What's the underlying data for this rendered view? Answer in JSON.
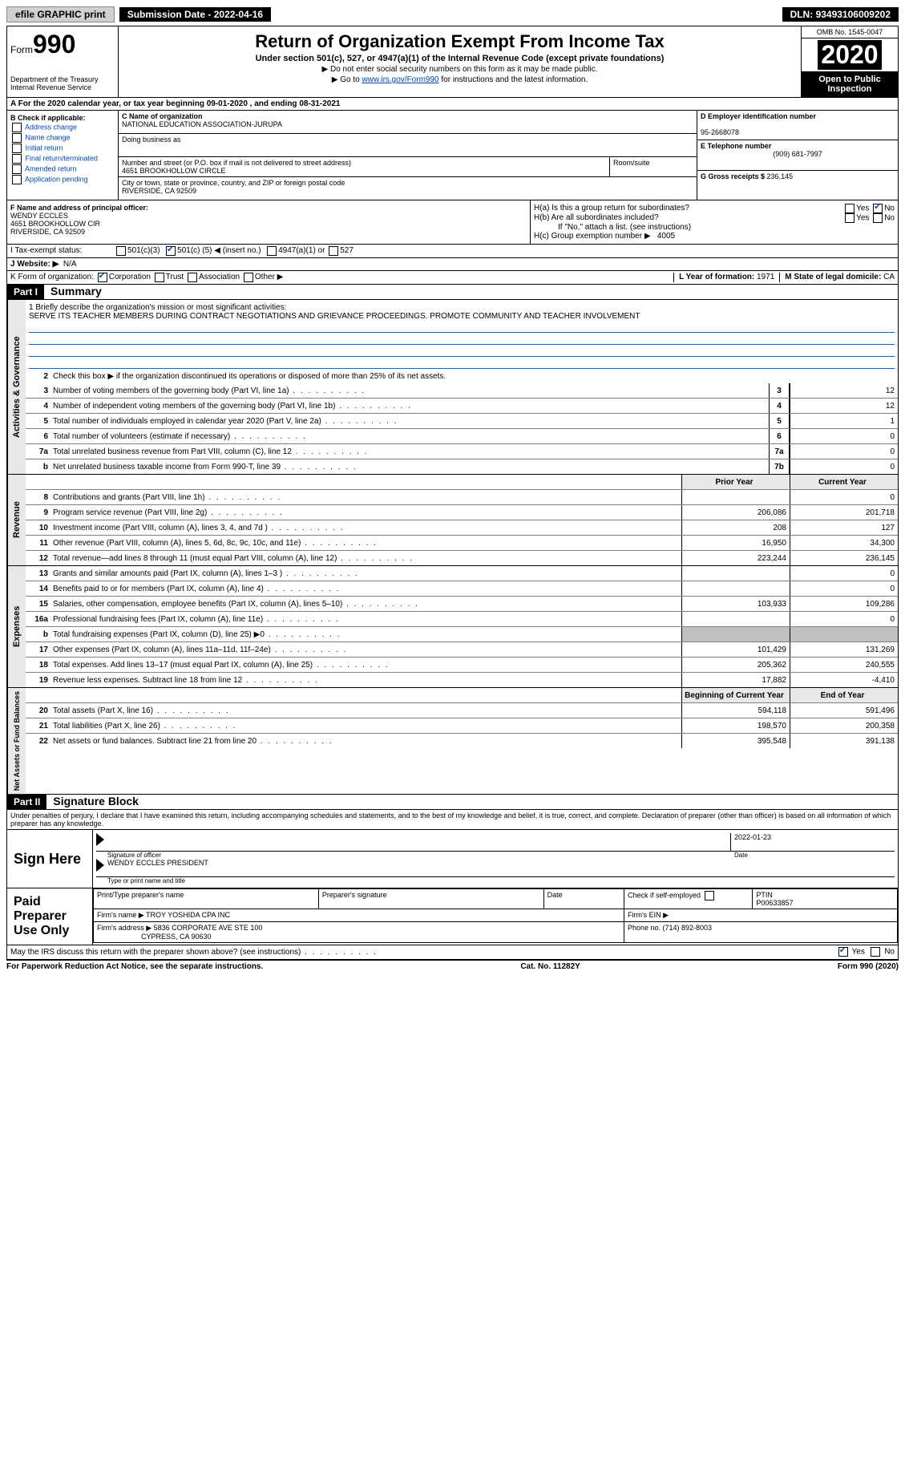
{
  "top": {
    "efile_label": "efile GRAPHIC print",
    "submission_prefix": "Submission Date - ",
    "submission_date": "2022-04-16",
    "dln_prefix": "DLN: ",
    "dln": "93493106009202"
  },
  "header": {
    "form_word": "Form",
    "form_num": "990",
    "dept": "Department of the Treasury",
    "irs": "Internal Revenue Service",
    "title": "Return of Organization Exempt From Income Tax",
    "subtitle": "Under section 501(c), 527, or 4947(a)(1) of the Internal Revenue Code (except private foundations)",
    "note1": "▶ Do not enter social security numbers on this form as it may be made public.",
    "note2_pre": "▶ Go to ",
    "note2_link": "www.irs.gov/Form990",
    "note2_post": " for instructions and the latest information.",
    "omb": "OMB No. 1545-0047",
    "year": "2020",
    "inspection1": "Open to Public",
    "inspection2": "Inspection"
  },
  "section_a": "A For the 2020 calendar year, or tax year beginning 09-01-2020   , and ending 08-31-2021",
  "box_b": {
    "header": "B Check if applicable:",
    "items": [
      "Address change",
      "Name change",
      "Initial return",
      "Final return/terminated",
      "Amended return",
      "Application pending"
    ]
  },
  "box_c": {
    "label": "C Name of organization",
    "org_name": "NATIONAL EDUCATION ASSOCIATION-JURUPA",
    "dba_label": "Doing business as",
    "addr_label": "Number and street (or P.O. box if mail is not delivered to street address)",
    "room_label": "Room/suite",
    "street": "4651 BROOKHOLLOW CIRCLE",
    "city_label": "City or town, state or province, country, and ZIP or foreign postal code",
    "city": "RIVERSIDE, CA  92509"
  },
  "box_d": {
    "label": "D Employer identification number",
    "value": "95-2668078"
  },
  "box_e": {
    "label": "E Telephone number",
    "value": "(909) 681-7997"
  },
  "box_g": {
    "label": "G Gross receipts $ ",
    "value": "236,145"
  },
  "box_f": {
    "label": "F Name and address of principal officer:",
    "name": "WENDY ECCLES",
    "addr1": "4651 BROOKHOLLOW CIR",
    "addr2": "RIVERSIDE, CA  92509"
  },
  "box_h": {
    "ha_label": "H(a)  Is this a group return for subordinates?",
    "hb_label": "H(b)  Are all subordinates included?",
    "hb_note": "If \"No,\" attach a list. (see instructions)",
    "hc_label": "H(c)  Group exemption number ▶",
    "hc_value": "4005",
    "yes": "Yes",
    "no": "No"
  },
  "row_i": {
    "label": "I   Tax-exempt status:",
    "opt1": "501(c)(3)",
    "opt2_pre": "501(c) ( ",
    "opt2_val": "5",
    "opt2_post": " ) ◀ (insert no.)",
    "opt3": "4947(a)(1) or",
    "opt4": "527"
  },
  "row_j": {
    "label": "J   Website: ▶",
    "value": "N/A"
  },
  "row_k": {
    "label": "K Form of organization:",
    "corp": "Corporation",
    "trust": "Trust",
    "assoc": "Association",
    "other": "Other ▶"
  },
  "row_l": {
    "label": "L Year of formation: ",
    "value": "1971"
  },
  "row_m": {
    "label": "M State of legal domicile: ",
    "value": "CA"
  },
  "part1": {
    "tag": "Part I",
    "title": "Summary",
    "line1_label": "1   Briefly describe the organization's mission or most significant activities:",
    "mission": "SERVE ITS TEACHER MEMBERS DURING CONTRACT NEGOTIATIONS AND GRIEVANCE PROCEEDINGS. PROMOTE COMMUNITY AND TEACHER INVOLVEMENT",
    "line2": "Check this box ▶       if the organization discontinued its operations or disposed of more than 25% of its net assets.",
    "header_prior": "Prior Year",
    "header_current": "Current Year",
    "header_begin": "Beginning of Current Year",
    "header_end": "End of Year",
    "side_gov": "Activities & Governance",
    "side_rev": "Revenue",
    "side_exp": "Expenses",
    "side_net": "Net Assets or Fund Balances",
    "lines_gov": [
      {
        "n": "3",
        "d": "Number of voting members of the governing body (Part VI, line 1a)",
        "box": "3",
        "v": "12"
      },
      {
        "n": "4",
        "d": "Number of independent voting members of the governing body (Part VI, line 1b)",
        "box": "4",
        "v": "12"
      },
      {
        "n": "5",
        "d": "Total number of individuals employed in calendar year 2020 (Part V, line 2a)",
        "box": "5",
        "v": "1"
      },
      {
        "n": "6",
        "d": "Total number of volunteers (estimate if necessary)",
        "box": "6",
        "v": "0"
      },
      {
        "n": "7a",
        "d": "Total unrelated business revenue from Part VIII, column (C), line 12",
        "box": "7a",
        "v": "0"
      },
      {
        "n": "b",
        "d": "Net unrelated business taxable income from Form 990-T, line 39",
        "box": "7b",
        "v": "0"
      }
    ],
    "lines_rev": [
      {
        "n": "8",
        "d": "Contributions and grants (Part VIII, line 1h)",
        "p": "",
        "c": "0"
      },
      {
        "n": "9",
        "d": "Program service revenue (Part VIII, line 2g)",
        "p": "206,086",
        "c": "201,718"
      },
      {
        "n": "10",
        "d": "Investment income (Part VIII, column (A), lines 3, 4, and 7d )",
        "p": "208",
        "c": "127"
      },
      {
        "n": "11",
        "d": "Other revenue (Part VIII, column (A), lines 5, 6d, 8c, 9c, 10c, and 11e)",
        "p": "16,950",
        "c": "34,300"
      },
      {
        "n": "12",
        "d": "Total revenue—add lines 8 through 11 (must equal Part VIII, column (A), line 12)",
        "p": "223,244",
        "c": "236,145"
      }
    ],
    "lines_exp": [
      {
        "n": "13",
        "d": "Grants and similar amounts paid (Part IX, column (A), lines 1–3 )",
        "p": "",
        "c": "0"
      },
      {
        "n": "14",
        "d": "Benefits paid to or for members (Part IX, column (A), line 4)",
        "p": "",
        "c": "0"
      },
      {
        "n": "15",
        "d": "Salaries, other compensation, employee benefits (Part IX, column (A), lines 5–10)",
        "p": "103,933",
        "c": "109,286"
      },
      {
        "n": "16a",
        "d": "Professional fundraising fees (Part IX, column (A), line 11e)",
        "p": "",
        "c": "0"
      },
      {
        "n": "b",
        "d": "Total fundraising expenses (Part IX, column (D), line 25) ▶0",
        "p": "SHADE",
        "c": "SHADE"
      },
      {
        "n": "17",
        "d": "Other expenses (Part IX, column (A), lines 11a–11d, 11f–24e)",
        "p": "101,429",
        "c": "131,269"
      },
      {
        "n": "18",
        "d": "Total expenses. Add lines 13–17 (must equal Part IX, column (A), line 25)",
        "p": "205,362",
        "c": "240,555"
      },
      {
        "n": "19",
        "d": "Revenue less expenses. Subtract line 18 from line 12",
        "p": "17,882",
        "c": "-4,410"
      }
    ],
    "lines_net": [
      {
        "n": "20",
        "d": "Total assets (Part X, line 16)",
        "p": "594,118",
        "c": "591,496"
      },
      {
        "n": "21",
        "d": "Total liabilities (Part X, line 26)",
        "p": "198,570",
        "c": "200,358"
      },
      {
        "n": "22",
        "d": "Net assets or fund balances. Subtract line 21 from line 20",
        "p": "395,548",
        "c": "391,138"
      }
    ]
  },
  "part2": {
    "tag": "Part II",
    "title": "Signature Block",
    "penalty": "Under penalties of perjury, I declare that I have examined this return, including accompanying schedules and statements, and to the best of my knowledge and belief, it is true, correct, and complete. Declaration of preparer (other than officer) is based on all information of which preparer has any knowledge.",
    "sign_here": "Sign Here",
    "sig_label": "Signature of officer",
    "date_label": "Date",
    "sig_date": "2022-01-23",
    "name_title_label": "Type or print name and title",
    "name_title": "WENDY ECCLES  PRESIDENT",
    "paid_label": "Paid Preparer Use Only",
    "prep_name_label": "Print/Type preparer's name",
    "prep_sig_label": "Preparer's signature",
    "prep_date_label": "Date",
    "check_self": "Check         if self-employed",
    "ptin_label": "PTIN",
    "ptin": "P00633857",
    "firm_name_label": "Firm's name      ▶ ",
    "firm_name": "TROY YOSHIDA CPA INC",
    "firm_ein_label": "Firm's EIN ▶",
    "firm_addr_label": "Firm's address ▶ ",
    "firm_addr1": "5836 CORPORATE AVE STE 100",
    "firm_addr2": "CYPRESS, CA  90630",
    "phone_label": "Phone no. ",
    "phone": "(714) 892-8003",
    "discuss": "May the IRS discuss this return with the preparer shown above? (see instructions)",
    "discuss_yes": "Yes",
    "discuss_no": "No"
  },
  "footer": {
    "left": "For Paperwork Reduction Act Notice, see the separate instructions.",
    "center": "Cat. No. 11282Y",
    "right": "Form 990 (2020)"
  }
}
